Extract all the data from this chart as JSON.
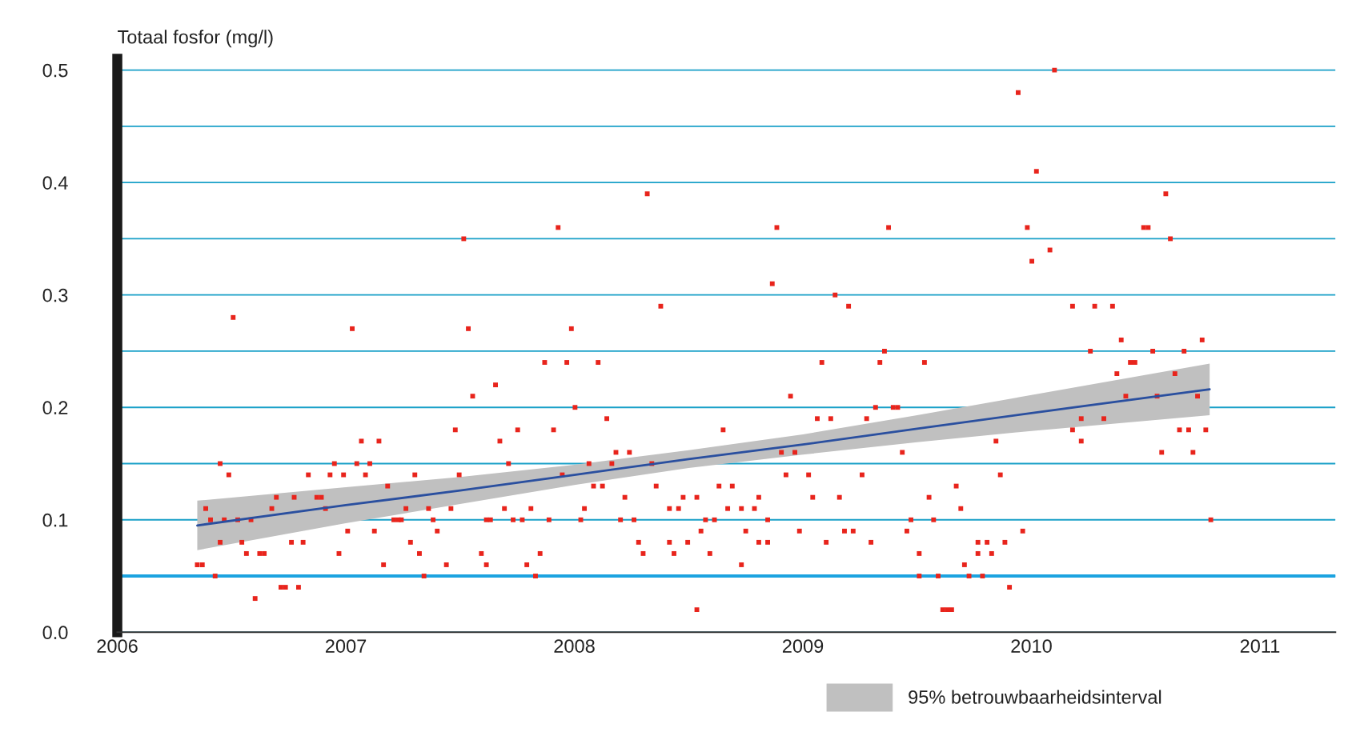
{
  "chart_data": {
    "type": "scatter",
    "ylabel": "Totaal fosfor (mg/l)",
    "xlim": [
      2006,
      2011.33
    ],
    "xticks": [
      2006,
      2007,
      2008,
      2009,
      2010,
      2011
    ],
    "ylim": [
      0,
      0.51
    ],
    "yticks": [
      {
        "value": 0,
        "label": "0.0"
      },
      {
        "value": 0.05,
        "label": null
      },
      0.1,
      {
        "value": 0.15,
        "label": null
      },
      0.2,
      {
        "value": 0.25,
        "label": null
      },
      0.3,
      {
        "value": 0.35,
        "label": null
      },
      0.4,
      {
        "value": 0.45,
        "label": null
      },
      0.5
    ],
    "grid": "y",
    "legend": "bottom",
    "ref_lines": [
      {
        "axis": "y",
        "value": 0.05,
        "color": "#1ca3e0"
      }
    ],
    "series": [
      {
        "marker": "square",
        "color": "#e8241c",
        "x": [
          2006.35,
          2006.372,
          2006.387,
          2006.408,
          2006.428,
          2006.45,
          2006.45,
          2006.468,
          2006.488,
          2006.507,
          2006.527,
          2006.545,
          2006.565,
          2006.585,
          2006.603,
          2006.623,
          2006.643,
          2006.676,
          2006.696,
          2006.716,
          2006.736,
          2006.762,
          2006.774,
          2006.793,
          2006.813,
          2006.836,
          2006.873,
          2006.893,
          2006.911,
          2006.931,
          2006.95,
          2006.97,
          2006.99,
          2007.008,
          2007.028,
          2007.048,
          2007.068,
          2007.086,
          2007.105,
          2007.125,
          2007.145,
          2007.165,
          2007.183,
          2007.21,
          2007.23,
          2007.243,
          2007.263,
          2007.283,
          2007.302,
          2007.322,
          2007.342,
          2007.362,
          2007.382,
          2007.4,
          2007.44,
          2007.46,
          2007.479,
          2007.496,
          2007.516,
          2007.536,
          2007.555,
          2007.593,
          2007.615,
          2007.615,
          2007.633,
          2007.655,
          2007.674,
          2007.694,
          2007.712,
          2007.732,
          2007.752,
          2007.772,
          2007.792,
          2007.81,
          2007.83,
          2007.85,
          2007.87,
          2007.889,
          2007.909,
          2007.929,
          2007.947,
          2007.967,
          2007.987,
          2008.003,
          2008.028,
          2008.044,
          2008.064,
          2008.084,
          2008.104,
          2008.123,
          2008.142,
          2008.164,
          2008.182,
          2008.202,
          2008.221,
          2008.241,
          2008.261,
          2008.281,
          2008.301,
          2008.319,
          2008.339,
          2008.358,
          2008.378,
          2008.416,
          2008.416,
          2008.436,
          2008.456,
          2008.476,
          2008.496,
          2008.536,
          2008.536,
          2008.554,
          2008.574,
          2008.593,
          2008.613,
          2008.633,
          2008.651,
          2008.671,
          2008.691,
          2008.731,
          2008.731,
          2008.75,
          2008.788,
          2008.807,
          2008.807,
          2008.846,
          2008.846,
          2008.866,
          2008.886,
          2008.906,
          2008.926,
          2008.946,
          2008.965,
          2008.985,
          2009.025,
          2009.043,
          2009.063,
          2009.083,
          2009.102,
          2009.122,
          2009.141,
          2009.16,
          2009.182,
          2009.2,
          2009.22,
          2009.259,
          2009.279,
          2009.298,
          2009.318,
          2009.337,
          2009.357,
          2009.375,
          2009.395,
          2009.415,
          2009.435,
          2009.455,
          2009.473,
          2009.509,
          2009.509,
          2009.532,
          2009.552,
          2009.572,
          2009.592,
          2009.612,
          2009.631,
          2009.651,
          2009.671,
          2009.691,
          2009.707,
          2009.727,
          2009.766,
          2009.766,
          2009.786,
          2009.806,
          2009.826,
          2009.845,
          2009.864,
          2009.884,
          2009.904,
          2009.942,
          2009.962,
          2009.982,
          2010.002,
          2010.022,
          2010.081,
          2010.101,
          2010.18,
          2010.18,
          2010.218,
          2010.218,
          2010.258,
          2010.277,
          2010.317,
          2010.355,
          2010.374,
          2010.393,
          2010.413,
          2010.433,
          2010.453,
          2010.491,
          2010.511,
          2010.531,
          2010.55,
          2010.57,
          2010.588,
          2010.608,
          2010.628,
          2010.648,
          2010.668,
          2010.688,
          2010.707,
          2010.727,
          2010.747,
          2010.763,
          2010.785
        ],
        "values": [
          0.06,
          0.06,
          0.11,
          0.1,
          0.05,
          0.15,
          0.08,
          0.1,
          0.14,
          0.28,
          0.1,
          0.08,
          0.07,
          0.1,
          0.03,
          0.07,
          0.07,
          0.11,
          0.12,
          0.04,
          0.04,
          0.08,
          0.12,
          0.04,
          0.08,
          0.14,
          0.12,
          0.12,
          0.11,
          0.14,
          0.15,
          0.07,
          0.14,
          0.09,
          0.27,
          0.15,
          0.17,
          0.14,
          0.15,
          0.09,
          0.17,
          0.06,
          0.13,
          0.1,
          0.1,
          0.1,
          0.11,
          0.08,
          0.14,
          0.07,
          0.05,
          0.11,
          0.1,
          0.09,
          0.06,
          0.11,
          0.18,
          0.14,
          0.35,
          0.27,
          0.21,
          0.07,
          0.06,
          0.1,
          0.1,
          0.22,
          0.17,
          0.11,
          0.15,
          0.1,
          0.18,
          0.1,
          0.06,
          0.11,
          0.05,
          0.07,
          0.24,
          0.1,
          0.18,
          0.36,
          0.14,
          0.24,
          0.27,
          0.2,
          0.1,
          0.11,
          0.15,
          0.13,
          0.24,
          0.13,
          0.19,
          0.15,
          0.16,
          0.1,
          0.12,
          0.16,
          0.1,
          0.08,
          0.07,
          0.39,
          0.15,
          0.13,
          0.29,
          0.11,
          0.08,
          0.07,
          0.11,
          0.12,
          0.08,
          0.12,
          0.02,
          0.09,
          0.1,
          0.07,
          0.1,
          0.13,
          0.18,
          0.11,
          0.13,
          0.11,
          0.06,
          0.09,
          0.11,
          0.12,
          0.08,
          0.08,
          0.1,
          0.31,
          0.36,
          0.16,
          0.14,
          0.21,
          0.16,
          0.09,
          0.14,
          0.12,
          0.19,
          0.24,
          0.08,
          0.19,
          0.3,
          0.12,
          0.09,
          0.29,
          0.09,
          0.14,
          0.19,
          0.08,
          0.2,
          0.24,
          0.25,
          0.36,
          0.2,
          0.2,
          0.16,
          0.09,
          0.1,
          0.07,
          0.05,
          0.24,
          0.12,
          0.1,
          0.05,
          0.02,
          0.02,
          0.02,
          0.13,
          0.11,
          0.06,
          0.05,
          0.08,
          0.07,
          0.05,
          0.08,
          0.07,
          0.17,
          0.14,
          0.08,
          0.04,
          0.48,
          0.09,
          0.36,
          0.33,
          0.41,
          0.34,
          0.5,
          0.29,
          0.18,
          0.19,
          0.17,
          0.25,
          0.29,
          0.19,
          0.29,
          0.23,
          0.26,
          0.21,
          0.24,
          0.24,
          0.36,
          0.36,
          0.25,
          0.21,
          0.16,
          0.39,
          0.35,
          0.23,
          0.18,
          0.25,
          0.18,
          0.16,
          0.21,
          0.26,
          0.18,
          0.1
        ]
      },
      {
        "type": "line",
        "marker": "none",
        "name": "95% betrouwbaarheidsinterval",
        "color": "#2a4f9f",
        "x": [
          2006.35,
          2007.0,
          2007.5,
          2008.0,
          2008.5,
          2009.0,
          2009.5,
          2010.0,
          2010.78
        ],
        "values": [
          0.095,
          0.113,
          0.126,
          0.14,
          0.154,
          0.167,
          0.181,
          0.195,
          0.216
        ],
        "lower": [
          0.073,
          0.097,
          0.114,
          0.131,
          0.146,
          0.158,
          0.169,
          0.179,
          0.193
        ],
        "upper": [
          0.117,
          0.129,
          0.138,
          0.149,
          0.162,
          0.176,
          0.193,
          0.211,
          0.239
        ]
      }
    ]
  }
}
